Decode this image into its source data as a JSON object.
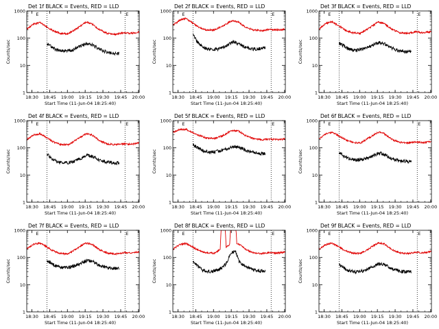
{
  "figure": {
    "ylabel": "Counts/sec",
    "xlabel": "Start Time (11-Jun-04 18:25:40)",
    "x_tick_labels": [
      "18:30",
      "18:45",
      "19:00",
      "19:15",
      "19:30",
      "19:45",
      "20:00"
    ],
    "y_tick_labels": [
      "1",
      "10",
      "100",
      "1000"
    ],
    "eclipse_marker": "E",
    "colors": {
      "events": "#000000",
      "lld": "#e00000"
    }
  },
  "chart_data": [
    {
      "type": "line",
      "title": "Det 1f BLACK = Events, RED = LLD",
      "ylim_log": [
        1,
        1000
      ],
      "xlim_min": [
        0,
        95
      ],
      "eclipse_lines_min": [
        17,
        83
      ],
      "lld_series": {
        "name": "LLD",
        "points": [
          [
            0,
            220
          ],
          [
            6,
            330
          ],
          [
            11,
            380
          ],
          [
            16,
            280
          ],
          [
            22,
            190
          ],
          [
            28,
            150
          ],
          [
            35,
            145
          ],
          [
            42,
            220
          ],
          [
            50,
            390
          ],
          [
            55,
            340
          ],
          [
            61,
            210
          ],
          [
            68,
            150
          ],
          [
            75,
            140
          ],
          [
            82,
            160
          ],
          [
            88,
            150
          ],
          [
            95,
            170
          ]
        ]
      },
      "events_series": {
        "name": "Events",
        "points": [
          [
            17,
            62
          ],
          [
            21,
            48
          ],
          [
            25,
            36
          ],
          [
            31,
            33
          ],
          [
            38,
            36
          ],
          [
            45,
            50
          ],
          [
            51,
            65
          ],
          [
            56,
            55
          ],
          [
            62,
            38
          ],
          [
            68,
            30
          ],
          [
            74,
            28
          ],
          [
            78,
            27
          ]
        ]
      }
    },
    {
      "type": "line",
      "title": "Det 2f BLACK = Events, RED = LLD",
      "ylim_log": [
        1,
        1000
      ],
      "xlim_min": [
        0,
        95
      ],
      "eclipse_lines_min": [
        17,
        83
      ],
      "lld_series": {
        "name": "LLD",
        "points": [
          [
            0,
            300
          ],
          [
            6,
            460
          ],
          [
            11,
            540
          ],
          [
            16,
            380
          ],
          [
            22,
            250
          ],
          [
            28,
            200
          ],
          [
            35,
            200
          ],
          [
            42,
            280
          ],
          [
            50,
            440
          ],
          [
            55,
            400
          ],
          [
            61,
            260
          ],
          [
            68,
            200
          ],
          [
            75,
            190
          ],
          [
            82,
            210
          ],
          [
            88,
            200
          ],
          [
            95,
            210
          ]
        ]
      },
      "events_series": {
        "name": "Events",
        "points": [
          [
            17,
            140
          ],
          [
            20,
            80
          ],
          [
            24,
            52
          ],
          [
            28,
            42
          ],
          [
            33,
            38
          ],
          [
            38,
            40
          ],
          [
            45,
            52
          ],
          [
            51,
            75
          ],
          [
            56,
            62
          ],
          [
            62,
            45
          ],
          [
            68,
            40
          ],
          [
            74,
            42
          ],
          [
            78,
            44
          ]
        ]
      }
    },
    {
      "type": "line",
      "title": "Det 3f BLACK = Events, RED = LLD",
      "ylim_log": [
        1,
        1000
      ],
      "xlim_min": [
        0,
        95
      ],
      "eclipse_lines_min": [
        17,
        83
      ],
      "lld_series": {
        "name": "LLD",
        "points": [
          [
            0,
            220
          ],
          [
            6,
            350
          ],
          [
            11,
            400
          ],
          [
            16,
            300
          ],
          [
            22,
            200
          ],
          [
            28,
            160
          ],
          [
            35,
            150
          ],
          [
            42,
            230
          ],
          [
            50,
            390
          ],
          [
            55,
            350
          ],
          [
            61,
            220
          ],
          [
            68,
            160
          ],
          [
            75,
            150
          ],
          [
            82,
            170
          ],
          [
            88,
            160
          ],
          [
            95,
            175
          ]
        ]
      },
      "events_series": {
        "name": "Events",
        "points": [
          [
            17,
            65
          ],
          [
            21,
            52
          ],
          [
            25,
            40
          ],
          [
            31,
            36
          ],
          [
            38,
            40
          ],
          [
            45,
            55
          ],
          [
            51,
            70
          ],
          [
            56,
            60
          ],
          [
            62,
            42
          ],
          [
            68,
            34
          ],
          [
            74,
            32
          ],
          [
            78,
            33
          ]
        ]
      }
    },
    {
      "type": "line",
      "title": "Det 4f BLACK = Events, RED = LLD",
      "ylim_log": [
        1,
        1000
      ],
      "xlim_min": [
        0,
        95
      ],
      "eclipse_lines_min": [
        17,
        83
      ],
      "lld_series": {
        "name": "LLD",
        "points": [
          [
            0,
            200
          ],
          [
            6,
            300
          ],
          [
            11,
            330
          ],
          [
            16,
            250
          ],
          [
            22,
            170
          ],
          [
            28,
            135
          ],
          [
            35,
            130
          ],
          [
            42,
            200
          ],
          [
            50,
            330
          ],
          [
            55,
            300
          ],
          [
            61,
            190
          ],
          [
            68,
            140
          ],
          [
            75,
            130
          ],
          [
            82,
            140
          ],
          [
            88,
            135
          ],
          [
            95,
            150
          ]
        ]
      },
      "events_series": {
        "name": "Events",
        "points": [
          [
            17,
            60
          ],
          [
            21,
            40
          ],
          [
            25,
            32
          ],
          [
            31,
            28
          ],
          [
            38,
            30
          ],
          [
            45,
            40
          ],
          [
            51,
            55
          ],
          [
            56,
            48
          ],
          [
            62,
            34
          ],
          [
            68,
            30
          ],
          [
            74,
            28
          ],
          [
            78,
            28
          ]
        ]
      }
    },
    {
      "type": "line",
      "title": "Det 5f BLACK = Events, RED = LLD",
      "ylim_log": [
        1,
        1000
      ],
      "xlim_min": [
        0,
        95
      ],
      "eclipse_lines_min": [
        17,
        83
      ],
      "lld_series": {
        "name": "LLD",
        "points": [
          [
            0,
            380
          ],
          [
            6,
            470
          ],
          [
            11,
            480
          ],
          [
            16,
            380
          ],
          [
            22,
            290
          ],
          [
            28,
            230
          ],
          [
            35,
            220
          ],
          [
            42,
            280
          ],
          [
            50,
            440
          ],
          [
            55,
            420
          ],
          [
            61,
            290
          ],
          [
            68,
            220
          ],
          [
            75,
            200
          ],
          [
            82,
            210
          ],
          [
            88,
            200
          ],
          [
            95,
            210
          ]
        ]
      },
      "events_series": {
        "name": "Events",
        "points": [
          [
            17,
            130
          ],
          [
            21,
            100
          ],
          [
            25,
            80
          ],
          [
            31,
            70
          ],
          [
            38,
            74
          ],
          [
            45,
            90
          ],
          [
            51,
            115
          ],
          [
            56,
            105
          ],
          [
            62,
            80
          ],
          [
            68,
            68
          ],
          [
            74,
            62
          ],
          [
            78,
            60
          ]
        ]
      }
    },
    {
      "type": "line",
      "title": "Det 6f BLACK = Events, RED = LLD",
      "ylim_log": [
        1,
        1000
      ],
      "xlim_min": [
        0,
        95
      ],
      "eclipse_lines_min": [
        17,
        83
      ],
      "lld_series": {
        "name": "LLD",
        "points": [
          [
            0,
            210
          ],
          [
            6,
            330
          ],
          [
            11,
            380
          ],
          [
            16,
            290
          ],
          [
            22,
            200
          ],
          [
            28,
            160
          ],
          [
            35,
            150
          ],
          [
            42,
            230
          ],
          [
            50,
            380
          ],
          [
            55,
            340
          ],
          [
            61,
            210
          ],
          [
            68,
            160
          ],
          [
            75,
            150
          ],
          [
            82,
            165
          ],
          [
            88,
            155
          ],
          [
            95,
            170
          ]
        ]
      },
      "events_series": {
        "name": "Events",
        "points": [
          [
            17,
            65
          ],
          [
            21,
            50
          ],
          [
            25,
            40
          ],
          [
            31,
            36
          ],
          [
            38,
            38
          ],
          [
            45,
            50
          ],
          [
            51,
            65
          ],
          [
            56,
            56
          ],
          [
            62,
            40
          ],
          [
            68,
            34
          ],
          [
            74,
            32
          ],
          [
            78,
            32
          ]
        ]
      }
    },
    {
      "type": "line",
      "title": "Det 7f BLACK = Events, RED = LLD",
      "ylim_log": [
        1,
        1000
      ],
      "xlim_min": [
        0,
        95
      ],
      "eclipse_lines_min": [
        17,
        83
      ],
      "lld_series": {
        "name": "LLD",
        "points": [
          [
            0,
            210
          ],
          [
            6,
            310
          ],
          [
            11,
            340
          ],
          [
            16,
            260
          ],
          [
            22,
            180
          ],
          [
            28,
            140
          ],
          [
            35,
            135
          ],
          [
            42,
            210
          ],
          [
            50,
            340
          ],
          [
            55,
            310
          ],
          [
            61,
            200
          ],
          [
            68,
            145
          ],
          [
            75,
            135
          ],
          [
            82,
            150
          ],
          [
            88,
            145
          ],
          [
            95,
            160
          ]
        ]
      },
      "events_series": {
        "name": "Events",
        "points": [
          [
            17,
            80
          ],
          [
            21,
            62
          ],
          [
            25,
            48
          ],
          [
            31,
            42
          ],
          [
            38,
            46
          ],
          [
            45,
            60
          ],
          [
            51,
            80
          ],
          [
            56,
            70
          ],
          [
            62,
            50
          ],
          [
            68,
            42
          ],
          [
            74,
            40
          ],
          [
            78,
            40
          ]
        ]
      }
    },
    {
      "type": "line",
      "title": "Det 8f BLACK = Events, RED = LLD",
      "ylim_log": [
        1,
        1000
      ],
      "xlim_min": [
        0,
        95
      ],
      "eclipse_lines_min": [
        17,
        83
      ],
      "lld_series": {
        "name": "LLD",
        "points": [
          [
            0,
            200
          ],
          [
            6,
            300
          ],
          [
            11,
            330
          ],
          [
            16,
            250
          ],
          [
            22,
            180
          ],
          [
            28,
            150
          ],
          [
            35,
            145
          ],
          [
            40,
            200
          ],
          [
            41,
            2000
          ],
          [
            44,
            2000
          ],
          [
            45,
            240
          ],
          [
            48,
            300
          ],
          [
            49,
            2000
          ],
          [
            53,
            2000
          ],
          [
            54,
            330
          ],
          [
            58,
            280
          ],
          [
            61,
            200
          ],
          [
            68,
            150
          ],
          [
            75,
            140
          ],
          [
            82,
            150
          ],
          [
            88,
            145
          ],
          [
            95,
            160
          ]
        ]
      },
      "events_series": {
        "name": "Events",
        "points": [
          [
            17,
            70
          ],
          [
            21,
            48
          ],
          [
            25,
            35
          ],
          [
            31,
            30
          ],
          [
            38,
            34
          ],
          [
            42,
            45
          ],
          [
            45,
            60
          ],
          [
            48,
            120
          ],
          [
            50,
            160
          ],
          [
            53,
            170
          ],
          [
            56,
            70
          ],
          [
            62,
            44
          ],
          [
            68,
            36
          ],
          [
            74,
            32
          ],
          [
            78,
            32
          ]
        ]
      }
    },
    {
      "type": "line",
      "title": "Det 9f BLACK = Events, RED = LLD",
      "ylim_log": [
        1,
        1000
      ],
      "xlim_min": [
        0,
        95
      ],
      "eclipse_lines_min": [
        17,
        83
      ],
      "lld_series": {
        "name": "LLD",
        "points": [
          [
            0,
            200
          ],
          [
            6,
            300
          ],
          [
            11,
            340
          ],
          [
            16,
            260
          ],
          [
            22,
            180
          ],
          [
            28,
            145
          ],
          [
            35,
            140
          ],
          [
            42,
            210
          ],
          [
            50,
            350
          ],
          [
            55,
            320
          ],
          [
            61,
            200
          ],
          [
            68,
            150
          ],
          [
            75,
            140
          ],
          [
            82,
            155
          ],
          [
            88,
            150
          ],
          [
            95,
            165
          ]
        ]
      },
      "events_series": {
        "name": "Events",
        "points": [
          [
            17,
            55
          ],
          [
            21,
            42
          ],
          [
            25,
            33
          ],
          [
            31,
            30
          ],
          [
            38,
            33
          ],
          [
            45,
            44
          ],
          [
            51,
            60
          ],
          [
            56,
            52
          ],
          [
            62,
            38
          ],
          [
            68,
            32
          ],
          [
            74,
            30
          ],
          [
            78,
            30
          ]
        ]
      }
    }
  ]
}
